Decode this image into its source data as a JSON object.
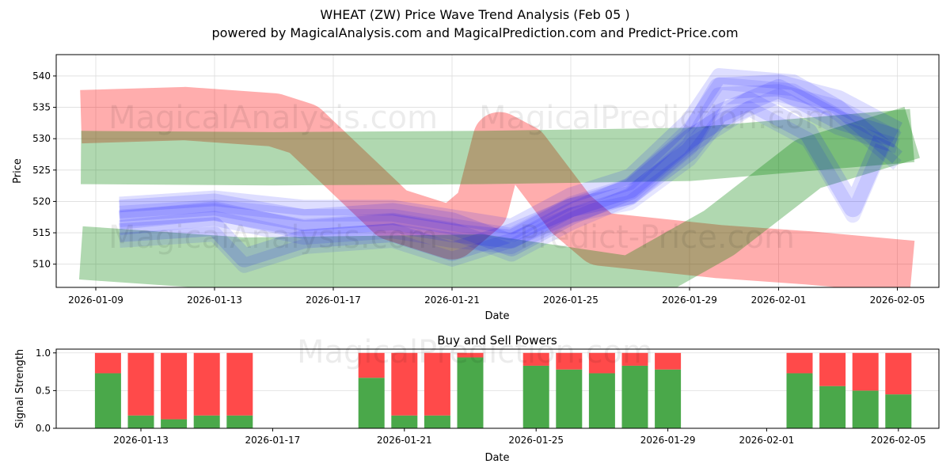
{
  "title": "WHEAT (ZW) Price Wave Trend Analysis (Feb 05 )",
  "subtitle": "powered by MagicalAnalysis.com and MagicalPrediction.com and Predict-Price.com",
  "watermarks": [
    "MagicalAnalysis.com",
    "MagicalPrediction.com",
    "MagicalAnalysis.com",
    "MagicalPrediction.com",
    "Predict-Price.com"
  ],
  "colors": {
    "red": "#ff0000",
    "green": "#008000",
    "blue": "#0000ff",
    "buy": "#4aa84a",
    "sell": "#ff4a4a"
  },
  "chart_data": [
    {
      "type": "area",
      "title": "",
      "xlabel": "Date",
      "ylabel": "Price",
      "ylim": [
        506.3,
        543.4
      ],
      "xlim": [
        "2026-01-07.6",
        "2026-02-06.6"
      ],
      "yticks": [
        510,
        515,
        520,
        525,
        530,
        535,
        540
      ],
      "xticks": [
        "2026-01-09",
        "2026-01-13",
        "2026-01-17",
        "2026-01-21",
        "2026-01-25",
        "2026-01-29",
        "2026-02-01",
        "2026-02-05"
      ],
      "grid": true,
      "series": [
        {
          "name": "red-band",
          "color": "red",
          "width": 8.5,
          "points": [
            [
              0.5,
              533.5
            ],
            [
              4,
              534
            ],
            [
              7,
              533
            ],
            [
              8,
              531.5
            ],
            [
              11,
              518
            ],
            [
              13,
              515
            ],
            [
              14,
              519
            ],
            [
              14.6,
              530
            ],
            [
              15.4,
              528
            ],
            [
              17,
              518
            ],
            [
              18,
              514
            ],
            [
              22,
              512
            ],
            [
              25,
              511
            ],
            [
              28.5,
              509.5
            ]
          ]
        },
        {
          "name": "green-band-upper",
          "color": "green",
          "width": 8.5,
          "points": [
            [
              0.5,
              527
            ],
            [
              7,
              526.8
            ],
            [
              14,
              527
            ],
            [
              21,
              527.5
            ],
            [
              28.5,
              530.5
            ]
          ]
        },
        {
          "name": "green-band-lower",
          "color": "green",
          "width": 8.5,
          "points": [
            [
              0.5,
              511.8
            ],
            [
              6,
              510
            ],
            [
              14,
              510.5
            ],
            [
              19,
              507
            ],
            [
              22,
              515
            ],
            [
              25,
              526
            ],
            [
              28.5,
              531
            ]
          ]
        },
        {
          "name": "blue-wave-1",
          "color": "blue",
          "width": 3.5,
          "points": [
            [
              1.8,
              518.5
            ],
            [
              5,
              519.5
            ],
            [
              8,
              517
            ],
            [
              11,
              518
            ],
            [
              13,
              516.5
            ],
            [
              15,
              513
            ],
            [
              17,
              518
            ],
            [
              19,
              522
            ],
            [
              21,
              530
            ],
            [
              22,
              538
            ],
            [
              24,
              538.5
            ],
            [
              26,
              536
            ],
            [
              28,
              531
            ]
          ]
        },
        {
          "name": "blue-wave-2",
          "color": "blue",
          "width": 3,
          "points": [
            [
              1.8,
              517
            ],
            [
              5,
              518.5
            ],
            [
              8,
              515.5
            ],
            [
              11,
              516.5
            ],
            [
              13,
              515
            ],
            [
              15,
              514
            ],
            [
              17,
              519
            ],
            [
              19,
              521
            ],
            [
              21,
              528
            ],
            [
              22,
              534
            ],
            [
              24,
              538
            ],
            [
              26,
              533
            ],
            [
              28,
              530
            ]
          ]
        },
        {
          "name": "blue-wave-3",
          "color": "blue",
          "width": 3,
          "points": [
            [
              1.8,
              515
            ],
            [
              5,
              516
            ],
            [
              6,
              511
            ],
            [
              8,
              514
            ],
            [
              11,
              515
            ],
            [
              13,
              512
            ],
            [
              15,
              515
            ],
            [
              17,
              519
            ],
            [
              19,
              522
            ],
            [
              21,
              530
            ],
            [
              23,
              536
            ],
            [
              25,
              531
            ],
            [
              26.5,
              519
            ],
            [
              27.5,
              530
            ]
          ]
        },
        {
          "name": "blue-wave-4",
          "color": "blue",
          "width": 2.5,
          "points": [
            [
              1.8,
              519.5
            ],
            [
              5,
              520.5
            ],
            [
              8,
              519
            ],
            [
              11,
              519
            ],
            [
              13,
              517.5
            ],
            [
              15,
              516
            ],
            [
              17,
              521
            ],
            [
              19,
              524
            ],
            [
              21,
              533
            ],
            [
              22,
              540
            ],
            [
              24.5,
              539
            ],
            [
              26,
              535
            ],
            [
              28,
              527
            ]
          ]
        }
      ]
    },
    {
      "type": "bar",
      "title": "Buy and Sell Powers",
      "xlabel": "Date",
      "ylabel": "Signal Strength",
      "ylim": [
        0,
        1.05
      ],
      "yticks": [
        "0.0",
        "0.5",
        "1.0"
      ],
      "xticks": [
        "2026-01-13",
        "2026-01-17",
        "2026-01-21",
        "2026-01-25",
        "2026-01-29",
        "2026-02-01",
        "2026-02-05"
      ],
      "categories": [
        "2026-01-12",
        "2026-01-13",
        "2026-01-14",
        "2026-01-15",
        "2026-01-16",
        "2026-01-20",
        "2026-01-21",
        "2026-01-22",
        "2026-01-23",
        "2026-01-25",
        "2026-01-26",
        "2026-01-27",
        "2026-01-28",
        "2026-01-29",
        "2026-02-02",
        "2026-02-03",
        "2026-02-04",
        "2026-02-05"
      ],
      "series": [
        {
          "name": "Buy",
          "values": [
            0.73,
            0.17,
            0.12,
            0.17,
            0.17,
            0.67,
            0.17,
            0.17,
            0.94,
            0.83,
            0.78,
            0.73,
            0.83,
            0.78,
            0.73,
            0.56,
            0.5,
            0.45
          ]
        },
        {
          "name": "Sell",
          "values": [
            0.27,
            0.83,
            0.88,
            0.83,
            0.83,
            0.33,
            0.83,
            0.83,
            0.06,
            0.17,
            0.22,
            0.27,
            0.17,
            0.22,
            0.27,
            0.44,
            0.5,
            0.55
          ]
        }
      ]
    }
  ]
}
